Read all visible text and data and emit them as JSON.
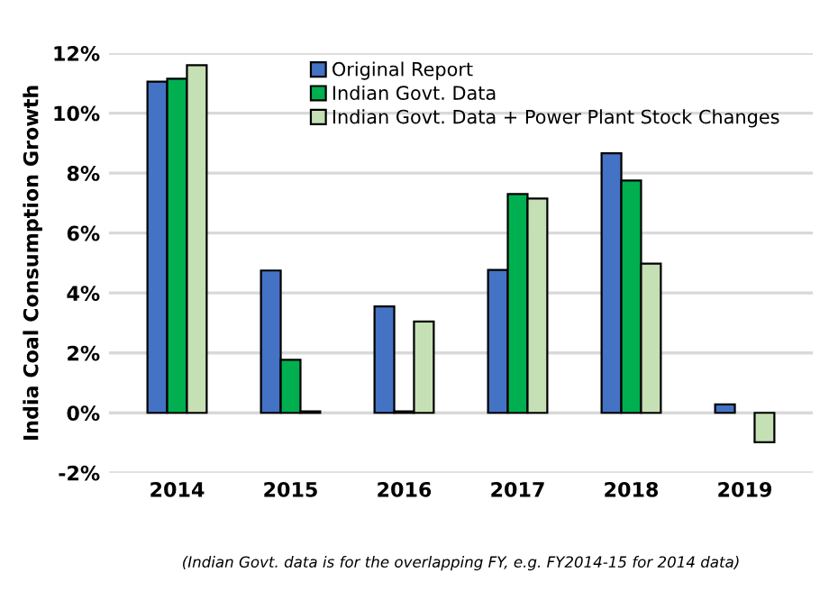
{
  "chart_data": {
    "type": "bar",
    "ylabel": "India Coal Consumption Growth",
    "categories": [
      "2014",
      "2015",
      "2016",
      "2017",
      "2018",
      "2019"
    ],
    "series": [
      {
        "name": "Original Report",
        "color": "#4472c4",
        "values": [
          11.05,
          4.75,
          3.55,
          4.77,
          8.66,
          0.28
        ]
      },
      {
        "name": "Indian Govt. Data",
        "color": "#00b050",
        "values": [
          11.15,
          1.77,
          0.05,
          7.3,
          7.75,
          null
        ]
      },
      {
        "name": "Indian Govt. Data + Power Plant Stock Changes",
        "color": "#c5e0b4",
        "values": [
          11.6,
          0.05,
          3.05,
          7.15,
          4.98,
          -0.98
        ]
      }
    ],
    "ylim": [
      -2,
      12
    ],
    "yticks": [
      {
        "value": -2,
        "label": "-2%"
      },
      {
        "value": 0,
        "label": "0%"
      },
      {
        "value": 2,
        "label": "2%"
      },
      {
        "value": 4,
        "label": "4%"
      },
      {
        "value": 6,
        "label": "6%"
      },
      {
        "value": 8,
        "label": "8%"
      },
      {
        "value": 10,
        "label": "10%"
      },
      {
        "value": 12,
        "label": "12%"
      }
    ],
    "grid": "y",
    "legend": "top",
    "annotations": [
      "(Indian Govt. data is for the overlapping FY, e.g. FY2014-15 for 2014 data)"
    ]
  }
}
